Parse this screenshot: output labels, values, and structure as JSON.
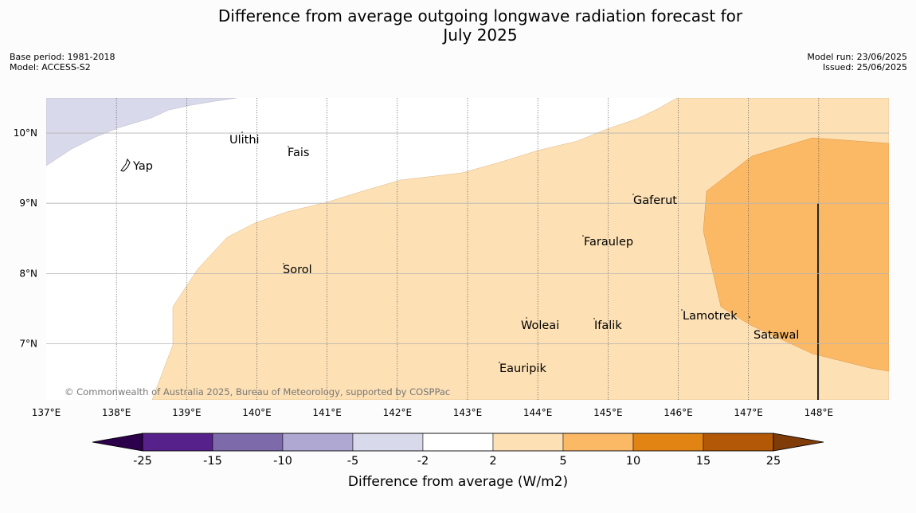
{
  "title_line1": "Difference from average outgoing longwave radiation forecast for",
  "title_line2": "July 2025",
  "base_period": "Base period: 1981-2018",
  "model": "Model: ACCESS-S2",
  "model_run": "Model run: 23/06/2025",
  "issued": "Issued: 25/06/2025",
  "copyright": "© Commonwealth of Australia 2025, Bureau of Meteorology, supported by COSPPac",
  "map": {
    "lon_range": [
      137,
      149
    ],
    "lat_range": [
      6.2,
      10.5
    ],
    "lon_ticks": [
      "137°E",
      "138°E",
      "139°E",
      "140°E",
      "141°E",
      "142°E",
      "143°E",
      "144°E",
      "145°E",
      "146°E",
      "147°E",
      "148°E"
    ],
    "lat_ticks": [
      "10°N",
      "9°N",
      "8°N",
      "7°N"
    ],
    "islands": [
      {
        "name": "Yap"
      },
      {
        "name": "Ulithi"
      },
      {
        "name": "Fais"
      },
      {
        "name": "Gaferut"
      },
      {
        "name": "Faraulep"
      },
      {
        "name": "Sorol"
      },
      {
        "name": "Lamotrek"
      },
      {
        "name": "Woleai"
      },
      {
        "name": "Ifalik"
      },
      {
        "name": "Satawal"
      },
      {
        "name": "Eauripik"
      }
    ],
    "shading": [
      {
        "category": "-5 to -2",
        "color": "#d8d9ea"
      },
      {
        "category": "2 to 5",
        "color": "#fde0b4"
      },
      {
        "category": "5 to 10",
        "color": "#fbb865"
      }
    ]
  },
  "colorbar": {
    "label": "Difference from average (W/m2)",
    "ticks": [
      "-25",
      "-15",
      "-10",
      "-5",
      "-2",
      "2",
      "5",
      "10",
      "15",
      "25"
    ],
    "segments": [
      "#57218c",
      "#7c6aab",
      "#afa8d2",
      "#d8d9ea",
      "#ffffff",
      "#fde0b4",
      "#fbb865",
      "#e18414",
      "#b35806"
    ],
    "extend_low": "#2d004b",
    "extend_high": "#7f3b08"
  }
}
